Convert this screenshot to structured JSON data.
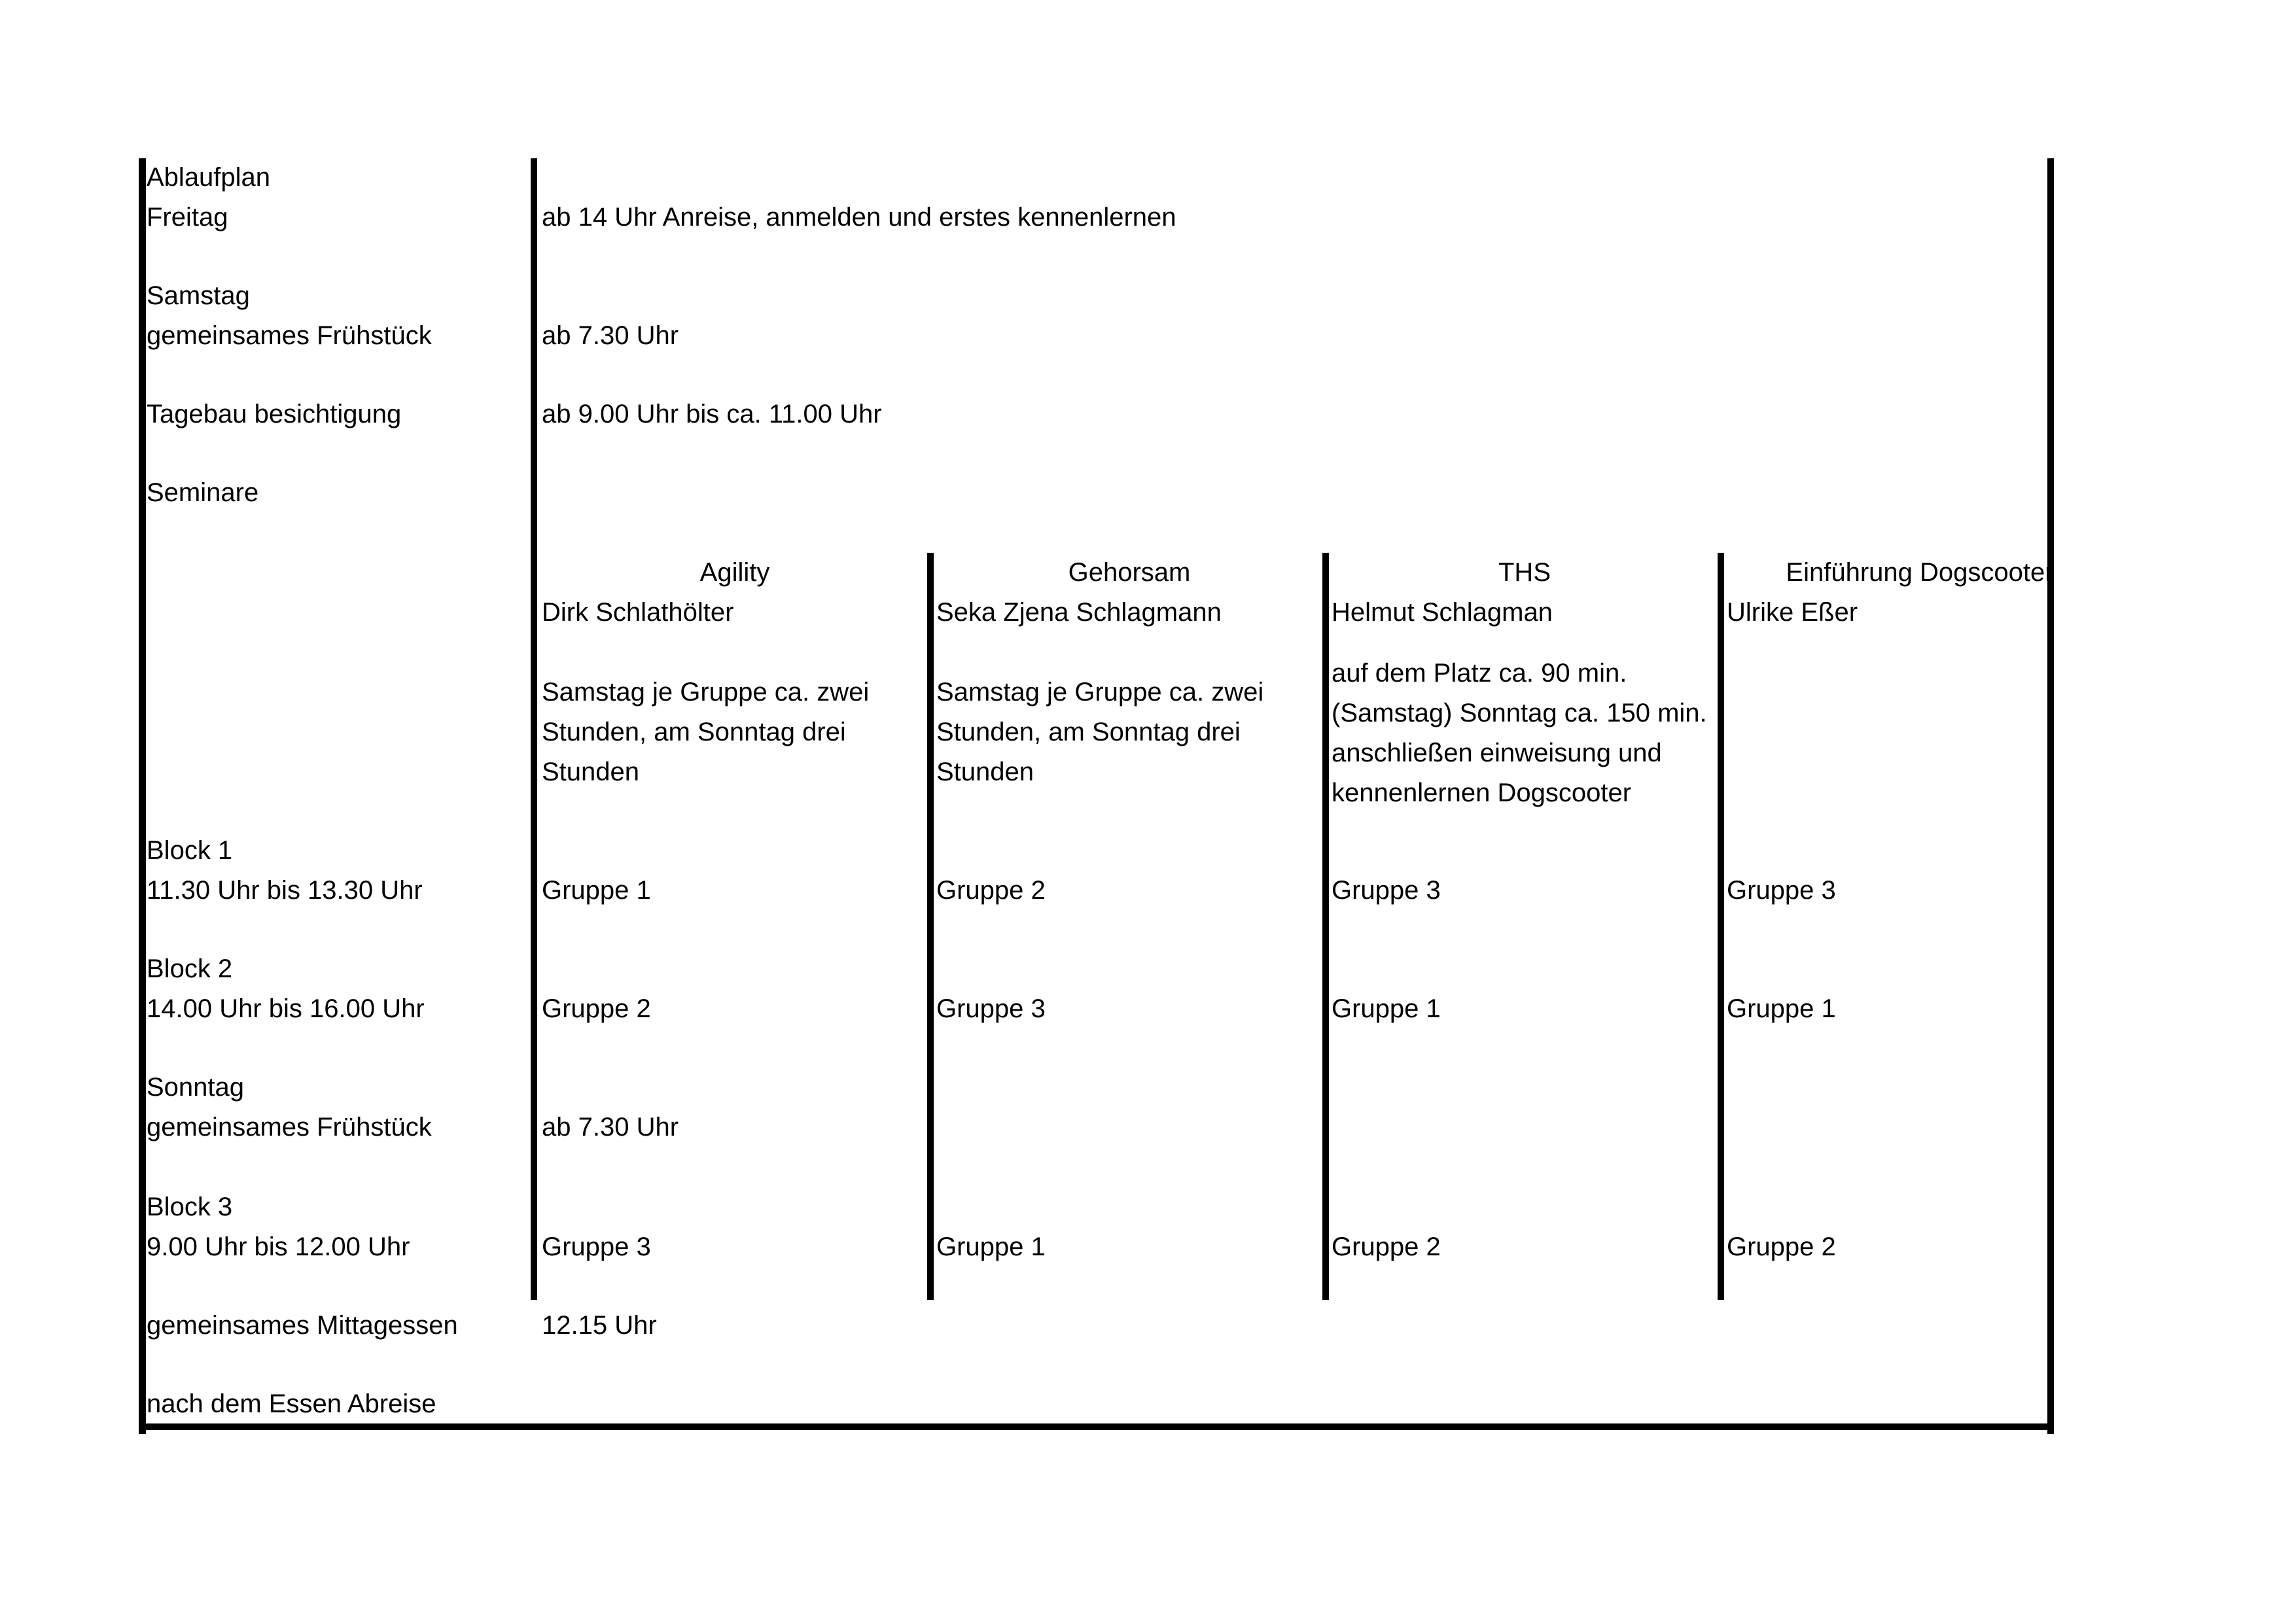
{
  "left": {
    "title": "Ablaufplan",
    "freitag": "Freitag",
    "samstag": "Samstag",
    "fruehstueck_sa": "gemeinsames Frühstück",
    "tagebau": "Tagebau besichtigung",
    "seminare": "Seminare",
    "block1": "Block 1",
    "block1_time": "11.30 Uhr bis 13.30 Uhr",
    "block2": "Block 2",
    "block2_time": "14.00 Uhr bis 16.00 Uhr",
    "sonntag": "Sonntag",
    "fruehstueck_so": "gemeinsames Frühstück",
    "block3": "Block 3",
    "block3_time": "9.00 Uhr bis 12.00 Uhr",
    "mittagessen": "gemeinsames Mittagessen",
    "abreise": "nach dem Essen Abreise"
  },
  "times": {
    "freitag": "ab 14 Uhr Anreise, anmelden und erstes kennenlernen",
    "fruehstueck_sa": "ab 7.30 Uhr",
    "tagebau": "ab 9.00 Uhr bis ca. 11.00 Uhr",
    "fruehstueck_so": "ab 7.30 Uhr",
    "mittagessen": "12.15 Uhr"
  },
  "seminars": [
    {
      "title": "Agility",
      "trainer": "Dirk Schlathölter",
      "desc": [
        "Samstag je Gruppe ca. zwei",
        "Stunden, am Sonntag drei",
        "Stunden"
      ],
      "block1": "Gruppe 1",
      "block2": "Gruppe 2",
      "block3": "Gruppe 3"
    },
    {
      "title": "Gehorsam",
      "trainer": "Seka Zjena Schlagmann",
      "desc": [
        "Samstag je Gruppe ca. zwei",
        "Stunden, am Sonntag drei",
        "Stunden"
      ],
      "block1": "Gruppe 2",
      "block2": "Gruppe 3",
      "block3": "Gruppe 1"
    },
    {
      "title": "THS",
      "trainer": "Helmut Schlagman",
      "desc": [
        "auf dem Platz ca. 90 min.",
        "(Samstag) Sonntag ca. 150 min.",
        "anschließen einweisung und",
        "kennenlernen Dogscooter"
      ],
      "block1": "Gruppe 3",
      "block2": "Gruppe 1",
      "block3": "Gruppe 2"
    },
    {
      "title": "Einführung Dogscooter",
      "trainer": "Ulrike Eßer",
      "desc": [],
      "block1": "Gruppe 3",
      "block2": "Gruppe 1",
      "block3": "Gruppe 2"
    }
  ]
}
